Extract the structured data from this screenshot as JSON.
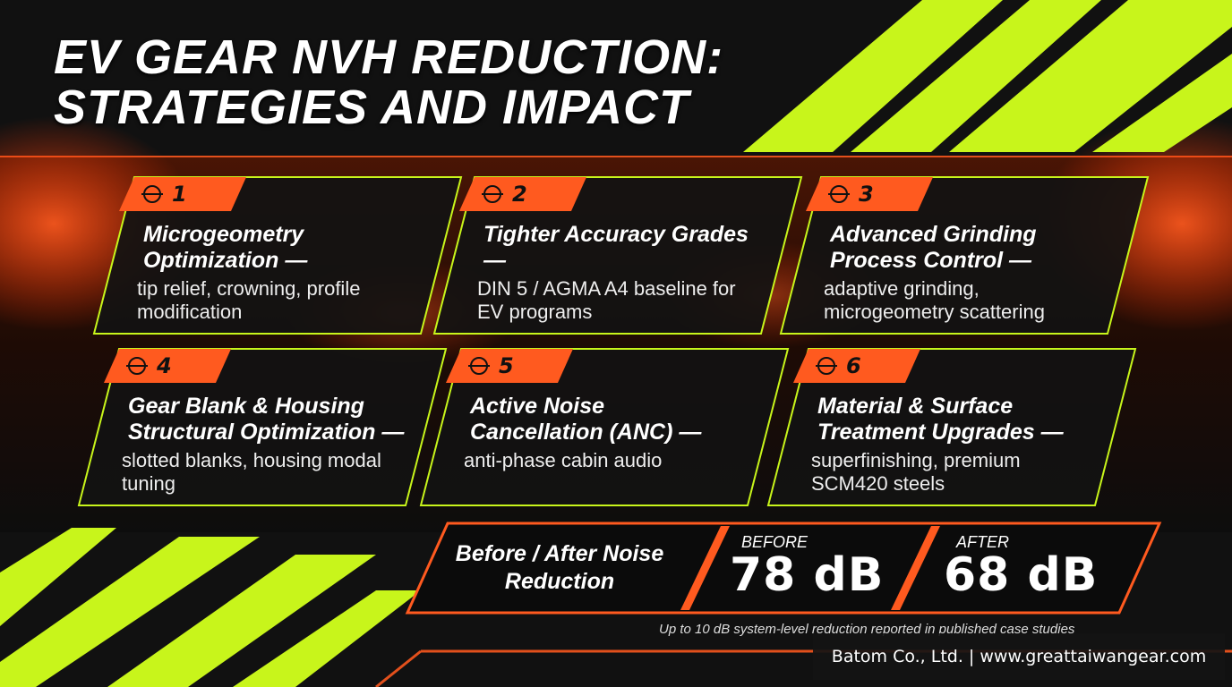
{
  "title": [
    "EV GEAR NVH REDUCTION:",
    "STRATEGIES AND IMPACT"
  ],
  "cards": [
    {
      "number": "1",
      "heading": "Microgeometry Optimization —",
      "description": "tip relief, crowning, profile modification"
    },
    {
      "number": "2",
      "heading": "Tighter Accuracy Grades —",
      "description": "DIN 5 / AGMA A4 baseline for EV programs"
    },
    {
      "number": "3",
      "heading": "Advanced Grinding Process Control —",
      "description": "adaptive grinding, microgeometry scattering"
    },
    {
      "number": "4",
      "heading": "Gear Blank & Housing Structural Optimization —",
      "description": "slotted blanks, housing modal tuning"
    },
    {
      "number": "5",
      "heading": "Active Noise Cancellation (ANC) —",
      "description": "anti-phase cabin audio"
    },
    {
      "number": "6",
      "heading": "Material & Surface Treatment Upgrades —",
      "description": "superfinishing, premium SCM420 steels"
    }
  ],
  "comparison": {
    "label": "Before / After Noise Reduction",
    "before_label": "BEFORE",
    "before_value": "78 dB",
    "after_label": "AFTER",
    "after_value": "68 dB"
  },
  "footnote": "Up to 10 dB system-level reduction reported in published case studies",
  "footer": "Batom Co., Ltd. | www.greattaiwangear.com"
}
